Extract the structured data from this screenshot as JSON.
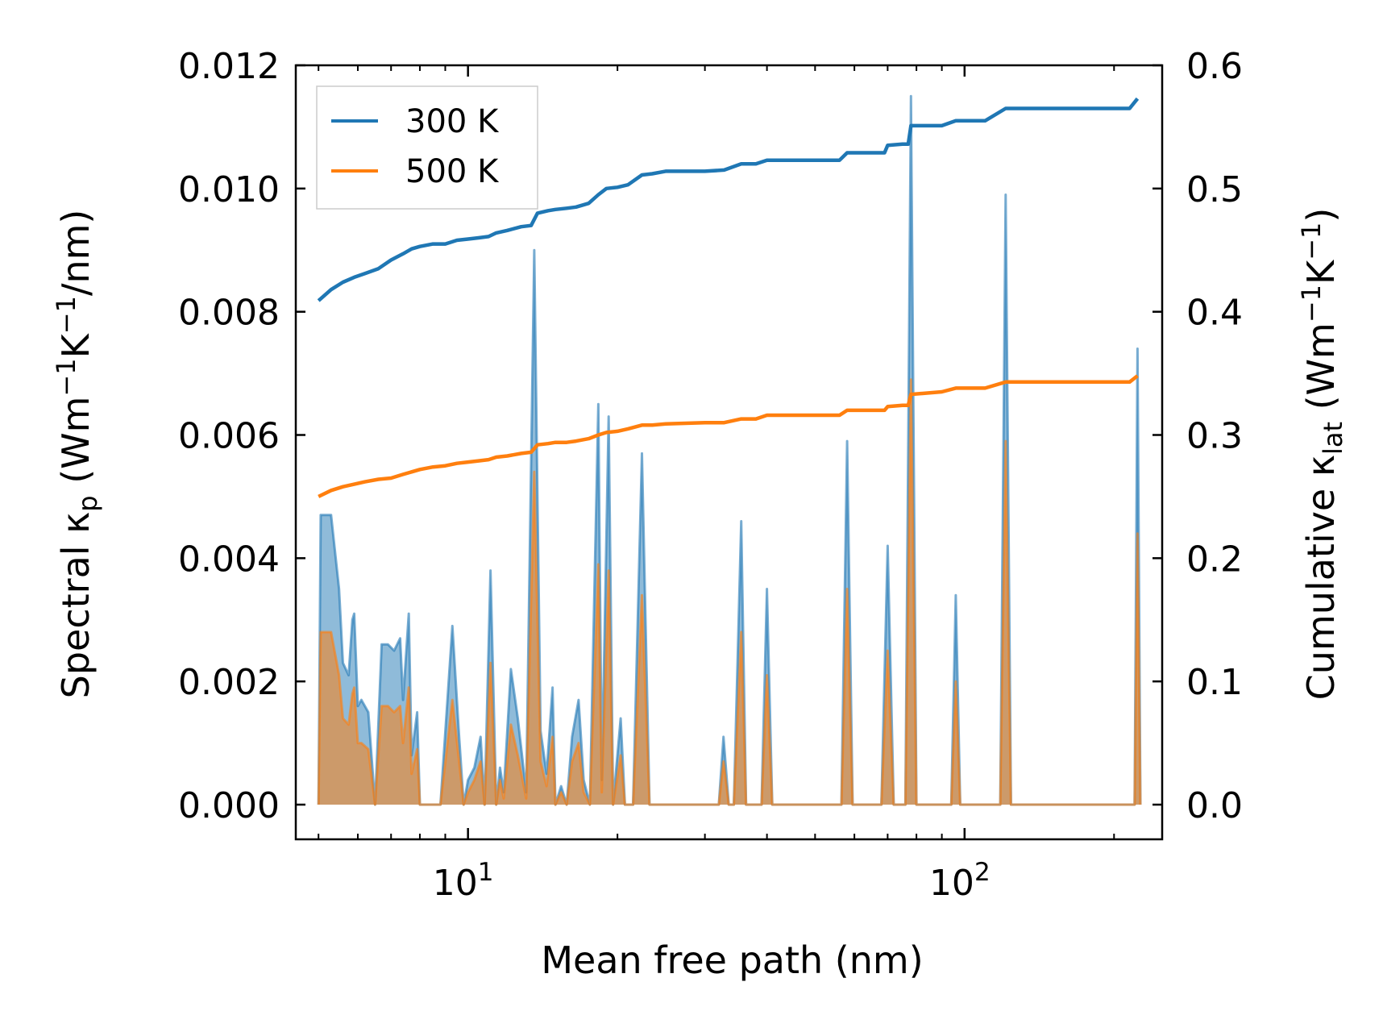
{
  "chart_data": {
    "type": "area",
    "xscale": "log",
    "xlabel": "Mean free path (nm)",
    "ylabel_left": {
      "text": "Spectral κ",
      "sub": "p",
      "units_pre": " (Wm",
      "sup1": "−1",
      "mid": "K",
      "sup2": "−1",
      "units_post": "/nm)"
    },
    "ylabel_right": {
      "text": "Cumulative κ",
      "sub": "lat",
      "units_pre": " (Wm",
      "sup1": "−1",
      "mid": "K",
      "sup2": "−1",
      "units_post": ")"
    },
    "xlim": [
      4.5,
      250
    ],
    "ylim_left": [
      0,
      0.012
    ],
    "ylim_right": [
      0,
      0.6
    ],
    "x_ticks": [
      {
        "value": 10,
        "base": "10",
        "exp": "1"
      },
      {
        "value": 100,
        "base": "10",
        "exp": "2"
      }
    ],
    "y_ticks_left": [
      {
        "value": 0.0,
        "label": "0.000"
      },
      {
        "value": 0.002,
        "label": "0.002"
      },
      {
        "value": 0.004,
        "label": "0.004"
      },
      {
        "value": 0.006,
        "label": "0.006"
      },
      {
        "value": 0.008,
        "label": "0.008"
      },
      {
        "value": 0.01,
        "label": "0.010"
      },
      {
        "value": 0.012,
        "label": "0.012"
      }
    ],
    "y_ticks_right": [
      {
        "value": 0.0,
        "label": "0.0"
      },
      {
        "value": 0.1,
        "label": "0.1"
      },
      {
        "value": 0.2,
        "label": "0.2"
      },
      {
        "value": 0.3,
        "label": "0.3"
      },
      {
        "value": 0.4,
        "label": "0.4"
      },
      {
        "value": 0.5,
        "label": "0.5"
      },
      {
        "value": 0.6,
        "label": "0.6"
      }
    ],
    "legend": {
      "position": "upper-left",
      "entries": [
        "300 K",
        "500 K"
      ]
    },
    "colors": {
      "300 K": "#1f77b4",
      "500 K": "#ff7f0e"
    },
    "spectral": {
      "300 K": [
        [
          5.0,
          0
        ],
        [
          5.05,
          0.0047
        ],
        [
          5.3,
          0.0047
        ],
        [
          5.5,
          0.0035
        ],
        [
          5.6,
          0.0023
        ],
        [
          5.75,
          0.0021
        ],
        [
          5.85,
          0.003
        ],
        [
          5.9,
          0.0031
        ],
        [
          6.0,
          0.0016
        ],
        [
          6.1,
          0.0017
        ],
        [
          6.3,
          0.0015
        ],
        [
          6.5,
          0
        ],
        [
          6.7,
          0.0026
        ],
        [
          6.9,
          0.0026
        ],
        [
          7.1,
          0.0025
        ],
        [
          7.3,
          0.0027
        ],
        [
          7.4,
          0.0017
        ],
        [
          7.6,
          0.0031
        ],
        [
          7.7,
          0.0008
        ],
        [
          7.9,
          0.0015
        ],
        [
          8.0,
          0
        ],
        [
          8.6,
          0
        ],
        [
          8.8,
          0
        ],
        [
          9.3,
          0.0029
        ],
        [
          9.6,
          0.0011
        ],
        [
          9.8,
          0
        ],
        [
          10.0,
          0.0004
        ],
        [
          10.3,
          0.0006
        ],
        [
          10.6,
          0.0011
        ],
        [
          10.8,
          0
        ],
        [
          11.1,
          0.0038
        ],
        [
          11.4,
          0
        ],
        [
          11.6,
          0.0006
        ],
        [
          11.8,
          0.0002
        ],
        [
          12.2,
          0.0022
        ],
        [
          12.6,
          0.0014
        ],
        [
          13.1,
          0.0002
        ],
        [
          13.6,
          0.009
        ],
        [
          14.0,
          0.0012
        ],
        [
          14.4,
          0.0005
        ],
        [
          14.8,
          0.0019
        ],
        [
          15.0,
          0
        ],
        [
          15.4,
          0.0003
        ],
        [
          15.8,
          0
        ],
        [
          16.2,
          0.0011
        ],
        [
          16.7,
          0.0017
        ],
        [
          17.1,
          0.0004
        ],
        [
          17.6,
          0
        ],
        [
          18.3,
          0.0065
        ],
        [
          18.6,
          0.0004
        ],
        [
          19.2,
          0.0063
        ],
        [
          19.6,
          0
        ],
        [
          20.3,
          0.0014
        ],
        [
          20.7,
          0
        ],
        [
          21.5,
          0
        ],
        [
          22.4,
          0.0057
        ],
        [
          23.2,
          0
        ],
        [
          24.5,
          0
        ],
        [
          26.0,
          0
        ],
        [
          30.0,
          0
        ],
        [
          32.0,
          0
        ],
        [
          32.7,
          0.0011
        ],
        [
          33.5,
          0
        ],
        [
          34.3,
          0
        ],
        [
          35.5,
          0.0046
        ],
        [
          36.3,
          0
        ],
        [
          39.0,
          0
        ],
        [
          40.0,
          0.0035
        ],
        [
          41.0,
          0
        ],
        [
          56.5,
          0
        ],
        [
          58.0,
          0.0059
        ],
        [
          59.5,
          0
        ],
        [
          68.0,
          0
        ],
        [
          70.0,
          0.0042
        ],
        [
          72.0,
          0
        ],
        [
          76.0,
          0
        ],
        [
          78.0,
          0.0115
        ],
        [
          80.0,
          0
        ],
        [
          94.0,
          0
        ],
        [
          96.0,
          0.0034
        ],
        [
          98.0,
          0
        ],
        [
          118.0,
          0
        ],
        [
          121.0,
          0.0099
        ],
        [
          124.0,
          0
        ],
        [
          220.0,
          0
        ],
        [
          223.0,
          0.0074
        ],
        [
          226.0,
          0
        ]
      ],
      "500 K": [
        [
          5.0,
          0
        ],
        [
          5.05,
          0.0028
        ],
        [
          5.3,
          0.0028
        ],
        [
          5.5,
          0.0021
        ],
        [
          5.6,
          0.0014
        ],
        [
          5.75,
          0.0013
        ],
        [
          5.85,
          0.0018
        ],
        [
          5.9,
          0.0019
        ],
        [
          6.0,
          0.001
        ],
        [
          6.1,
          0.001
        ],
        [
          6.3,
          0.0009
        ],
        [
          6.5,
          0
        ],
        [
          6.7,
          0.0016
        ],
        [
          6.9,
          0.0016
        ],
        [
          7.1,
          0.0015
        ],
        [
          7.3,
          0.0016
        ],
        [
          7.4,
          0.001
        ],
        [
          7.6,
          0.0019
        ],
        [
          7.7,
          0.0005
        ],
        [
          7.9,
          0.0009
        ],
        [
          8.0,
          0
        ],
        [
          8.6,
          0
        ],
        [
          8.8,
          0
        ],
        [
          9.3,
          0.0017
        ],
        [
          9.6,
          0.0007
        ],
        [
          9.8,
          0
        ],
        [
          10.0,
          0.0002
        ],
        [
          10.3,
          0.0004
        ],
        [
          10.6,
          0.0007
        ],
        [
          10.8,
          0
        ],
        [
          11.1,
          0.0023
        ],
        [
          11.4,
          0
        ],
        [
          11.6,
          0.0004
        ],
        [
          11.8,
          0.0001
        ],
        [
          12.2,
          0.0013
        ],
        [
          12.6,
          0.0008
        ],
        [
          13.1,
          0.0001
        ],
        [
          13.6,
          0.0054
        ],
        [
          14.0,
          0.0007
        ],
        [
          14.4,
          0.0003
        ],
        [
          14.8,
          0.0011
        ],
        [
          15.0,
          0
        ],
        [
          15.4,
          0.0002
        ],
        [
          15.8,
          0
        ],
        [
          16.2,
          0.0007
        ],
        [
          16.7,
          0.001
        ],
        [
          17.1,
          0.0002
        ],
        [
          17.6,
          0
        ],
        [
          18.3,
          0.0039
        ],
        [
          18.6,
          0.0002
        ],
        [
          19.2,
          0.0038
        ],
        [
          19.6,
          0
        ],
        [
          20.3,
          0.0008
        ],
        [
          20.7,
          0
        ],
        [
          21.5,
          0
        ],
        [
          22.4,
          0.0034
        ],
        [
          23.2,
          0
        ],
        [
          24.5,
          0
        ],
        [
          26.0,
          0
        ],
        [
          30.0,
          0
        ],
        [
          32.0,
          0
        ],
        [
          32.7,
          0.0007
        ],
        [
          33.5,
          0
        ],
        [
          34.3,
          0
        ],
        [
          35.5,
          0.0028
        ],
        [
          36.3,
          0
        ],
        [
          39.0,
          0
        ],
        [
          40.0,
          0.0021
        ],
        [
          41.0,
          0
        ],
        [
          56.5,
          0
        ],
        [
          58.0,
          0.0035
        ],
        [
          59.5,
          0
        ],
        [
          68.0,
          0
        ],
        [
          70.0,
          0.0025
        ],
        [
          72.0,
          0
        ],
        [
          76.0,
          0
        ],
        [
          78.0,
          0.0069
        ],
        [
          80.0,
          0
        ],
        [
          94.0,
          0
        ],
        [
          96.0,
          0.002
        ],
        [
          98.0,
          0
        ],
        [
          118.0,
          0
        ],
        [
          121.0,
          0.0059
        ],
        [
          124.0,
          0
        ],
        [
          220.0,
          0
        ],
        [
          223.0,
          0.0044
        ],
        [
          226.0,
          0
        ]
      ]
    },
    "cumulative": {
      "300 K": [
        [
          5.0,
          0.409
        ],
        [
          5.3,
          0.418
        ],
        [
          5.6,
          0.424
        ],
        [
          5.9,
          0.428
        ],
        [
          6.2,
          0.431
        ],
        [
          6.6,
          0.435
        ],
        [
          7.0,
          0.442
        ],
        [
          7.4,
          0.447
        ],
        [
          7.7,
          0.451
        ],
        [
          8.0,
          0.453
        ],
        [
          8.5,
          0.455
        ],
        [
          9.0,
          0.455
        ],
        [
          9.5,
          0.458
        ],
        [
          10.0,
          0.459
        ],
        [
          10.5,
          0.46
        ],
        [
          11.0,
          0.461
        ],
        [
          11.4,
          0.464
        ],
        [
          12.0,
          0.466
        ],
        [
          12.8,
          0.469
        ],
        [
          13.4,
          0.47
        ],
        [
          13.8,
          0.48
        ],
        [
          14.5,
          0.482
        ],
        [
          15.0,
          0.483
        ],
        [
          15.8,
          0.484
        ],
        [
          16.5,
          0.485
        ],
        [
          17.5,
          0.488
        ],
        [
          18.3,
          0.495
        ],
        [
          19.0,
          0.5
        ],
        [
          20.0,
          0.501
        ],
        [
          21.0,
          0.503
        ],
        [
          22.4,
          0.511
        ],
        [
          23.5,
          0.512
        ],
        [
          25.0,
          0.514
        ],
        [
          30.0,
          0.514
        ],
        [
          32.8,
          0.515
        ],
        [
          35.5,
          0.52
        ],
        [
          38.0,
          0.52
        ],
        [
          40.0,
          0.523
        ],
        [
          50.0,
          0.523
        ],
        [
          56.0,
          0.523
        ],
        [
          58.0,
          0.529
        ],
        [
          65.0,
          0.529
        ],
        [
          69.0,
          0.529
        ],
        [
          70.0,
          0.535
        ],
        [
          75.0,
          0.536
        ],
        [
          77.0,
          0.536
        ],
        [
          78.0,
          0.551
        ],
        [
          90.0,
          0.551
        ],
        [
          96.0,
          0.555
        ],
        [
          110.0,
          0.555
        ],
        [
          121.0,
          0.565
        ],
        [
          150.0,
          0.565
        ],
        [
          200.0,
          0.565
        ],
        [
          215.0,
          0.565
        ],
        [
          223.0,
          0.573
        ]
      ],
      "500 K": [
        [
          5.0,
          0.25
        ],
        [
          5.3,
          0.255
        ],
        [
          5.6,
          0.258
        ],
        [
          5.9,
          0.26
        ],
        [
          6.2,
          0.262
        ],
        [
          6.6,
          0.264
        ],
        [
          7.0,
          0.265
        ],
        [
          7.4,
          0.268
        ],
        [
          7.7,
          0.27
        ],
        [
          8.0,
          0.272
        ],
        [
          8.5,
          0.274
        ],
        [
          9.0,
          0.275
        ],
        [
          9.5,
          0.277
        ],
        [
          10.0,
          0.278
        ],
        [
          10.5,
          0.279
        ],
        [
          11.0,
          0.28
        ],
        [
          11.4,
          0.282
        ],
        [
          12.0,
          0.283
        ],
        [
          12.8,
          0.285
        ],
        [
          13.4,
          0.286
        ],
        [
          13.8,
          0.292
        ],
        [
          14.5,
          0.293
        ],
        [
          15.0,
          0.294
        ],
        [
          15.8,
          0.294
        ],
        [
          16.5,
          0.295
        ],
        [
          17.5,
          0.297
        ],
        [
          18.3,
          0.3
        ],
        [
          19.0,
          0.302
        ],
        [
          20.0,
          0.303
        ],
        [
          21.0,
          0.305
        ],
        [
          22.4,
          0.308
        ],
        [
          23.5,
          0.308
        ],
        [
          25.0,
          0.309
        ],
        [
          30.0,
          0.31
        ],
        [
          32.8,
          0.31
        ],
        [
          35.5,
          0.313
        ],
        [
          38.0,
          0.313
        ],
        [
          40.0,
          0.316
        ],
        [
          50.0,
          0.316
        ],
        [
          56.0,
          0.316
        ],
        [
          58.0,
          0.32
        ],
        [
          65.0,
          0.32
        ],
        [
          69.0,
          0.32
        ],
        [
          70.0,
          0.323
        ],
        [
          75.0,
          0.324
        ],
        [
          77.0,
          0.324
        ],
        [
          78.0,
          0.333
        ],
        [
          90.0,
          0.335
        ],
        [
          96.0,
          0.338
        ],
        [
          110.0,
          0.338
        ],
        [
          121.0,
          0.343
        ],
        [
          150.0,
          0.343
        ],
        [
          200.0,
          0.343
        ],
        [
          215.0,
          0.343
        ],
        [
          223.0,
          0.348
        ]
      ]
    }
  }
}
